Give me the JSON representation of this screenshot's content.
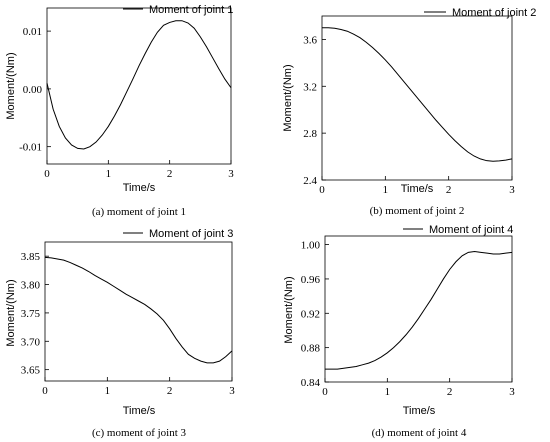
{
  "chart_data": [
    {
      "type": "line",
      "caption": "(a) moment of joint 1",
      "xlabel": "Time/s",
      "ylabel": "Moment/(Nm)",
      "legend": "Moment of joint 1",
      "xlim": [
        0,
        3
      ],
      "ylim": [
        -0.013,
        0.014
      ],
      "xticks": [
        "0",
        "1",
        "2",
        "3"
      ],
      "yticks": [
        {
          "value": 0.01,
          "label": "0.01"
        },
        {
          "value": 0.0,
          "label": "0.00"
        },
        {
          "value": -0.01,
          "label": "-0.01"
        }
      ],
      "series": [
        {
          "x": [
            0,
            0.1,
            0.2,
            0.3,
            0.4,
            0.5,
            0.6,
            0.7,
            0.8,
            0.9,
            1.0,
            1.1,
            1.2,
            1.3,
            1.4,
            1.5,
            1.6,
            1.7,
            1.8,
            1.9,
            2.0,
            2.1,
            2.2,
            2.3,
            2.4,
            2.5,
            2.6,
            2.7,
            2.8,
            2.9,
            3.0
          ],
          "y": [
            0.001,
            -0.0035,
            -0.0065,
            -0.0085,
            -0.0097,
            -0.0103,
            -0.0104,
            -0.01,
            -0.0092,
            -0.008,
            -0.0065,
            -0.0047,
            -0.0027,
            -0.0005,
            0.0017,
            0.004,
            0.0061,
            0.0081,
            0.0098,
            0.011,
            0.0115,
            0.0118,
            0.0118,
            0.0114,
            0.0105,
            0.009,
            0.0073,
            0.0054,
            0.0035,
            0.0017,
            0.0002
          ]
        }
      ]
    },
    {
      "type": "line",
      "caption": "(b) moment of joint 2",
      "xlabel": "Time/s",
      "ylabel": "Moment/(Nm)",
      "legend": "Moment of joint 2",
      "xlim": [
        0,
        3
      ],
      "ylim": [
        2.4,
        3.8
      ],
      "xticks": [
        "0",
        "1",
        "2",
        "3"
      ],
      "yticks": [
        {
          "value": 3.6,
          "label": "3.6"
        },
        {
          "value": 3.2,
          "label": "3.2"
        },
        {
          "value": 2.8,
          "label": "2.8"
        },
        {
          "value": 2.4,
          "label": "2.4"
        }
      ],
      "series": [
        {
          "x": [
            0,
            0.1,
            0.2,
            0.3,
            0.4,
            0.5,
            0.6,
            0.7,
            0.8,
            0.9,
            1.0,
            1.1,
            1.2,
            1.3,
            1.4,
            1.5,
            1.6,
            1.7,
            1.8,
            1.9,
            2.0,
            2.1,
            2.2,
            2.3,
            2.4,
            2.5,
            2.6,
            2.7,
            2.8,
            2.9,
            3.0
          ],
          "y": [
            3.7,
            3.7,
            3.695,
            3.685,
            3.67,
            3.645,
            3.615,
            3.575,
            3.53,
            3.48,
            3.425,
            3.365,
            3.3,
            3.235,
            3.17,
            3.105,
            3.04,
            2.975,
            2.91,
            2.85,
            2.79,
            2.735,
            2.685,
            2.64,
            2.605,
            2.58,
            2.565,
            2.56,
            2.563,
            2.57,
            2.58
          ]
        }
      ]
    },
    {
      "type": "line",
      "caption": "(c) moment of joint 3",
      "xlabel": "Time/s",
      "ylabel": "Moment/(Nm)",
      "legend": "Moment of joint 3",
      "xlim": [
        0,
        3
      ],
      "ylim": [
        3.63,
        3.875
      ],
      "xticks": [
        "0",
        "1",
        "2",
        "3"
      ],
      "yticks": [
        {
          "value": 3.85,
          "label": "3.85"
        },
        {
          "value": 3.8,
          "label": "3.80"
        },
        {
          "value": 3.75,
          "label": "3.75"
        },
        {
          "value": 3.7,
          "label": "3.70"
        },
        {
          "value": 3.65,
          "label": "3.65"
        }
      ],
      "series": [
        {
          "x": [
            0,
            0.1,
            0.2,
            0.3,
            0.4,
            0.5,
            0.6,
            0.7,
            0.8,
            0.9,
            1.0,
            1.1,
            1.2,
            1.3,
            1.4,
            1.5,
            1.6,
            1.7,
            1.8,
            1.9,
            2.0,
            2.1,
            2.2,
            2.3,
            2.4,
            2.5,
            2.6,
            2.7,
            2.8,
            2.9,
            3.0
          ],
          "y": [
            3.848,
            3.847,
            3.845,
            3.843,
            3.839,
            3.834,
            3.829,
            3.823,
            3.816,
            3.81,
            3.804,
            3.797,
            3.79,
            3.783,
            3.777,
            3.771,
            3.765,
            3.757,
            3.748,
            3.737,
            3.722,
            3.705,
            3.69,
            3.677,
            3.67,
            3.665,
            3.662,
            3.662,
            3.665,
            3.673,
            3.683
          ]
        }
      ]
    },
    {
      "type": "line",
      "caption": "(d) moment of joint 4",
      "xlabel": "Time/s",
      "ylabel": "Moment/(Nm)",
      "legend": "Moment of joint 4",
      "xlim": [
        0,
        3
      ],
      "ylim": [
        0.84,
        1.01
      ],
      "xticks": [
        "0",
        "1",
        "2",
        "3"
      ],
      "yticks": [
        {
          "value": 1.0,
          "label": "1.00"
        },
        {
          "value": 0.96,
          "label": "0.96"
        },
        {
          "value": 0.92,
          "label": "0.92"
        },
        {
          "value": 0.88,
          "label": "0.88"
        },
        {
          "value": 0.84,
          "label": "0.84"
        }
      ],
      "series": [
        {
          "x": [
            0,
            0.1,
            0.2,
            0.3,
            0.4,
            0.5,
            0.6,
            0.7,
            0.8,
            0.9,
            1.0,
            1.1,
            1.2,
            1.3,
            1.4,
            1.5,
            1.6,
            1.7,
            1.8,
            1.9,
            2.0,
            2.1,
            2.2,
            2.3,
            2.4,
            2.5,
            2.6,
            2.7,
            2.8,
            2.9,
            3.0
          ],
          "y": [
            0.855,
            0.855,
            0.855,
            0.856,
            0.857,
            0.858,
            0.86,
            0.862,
            0.865,
            0.869,
            0.874,
            0.88,
            0.887,
            0.895,
            0.904,
            0.914,
            0.925,
            0.936,
            0.948,
            0.96,
            0.971,
            0.98,
            0.987,
            0.991,
            0.992,
            0.991,
            0.99,
            0.989,
            0.989,
            0.99,
            0.991
          ]
        }
      ]
    }
  ]
}
